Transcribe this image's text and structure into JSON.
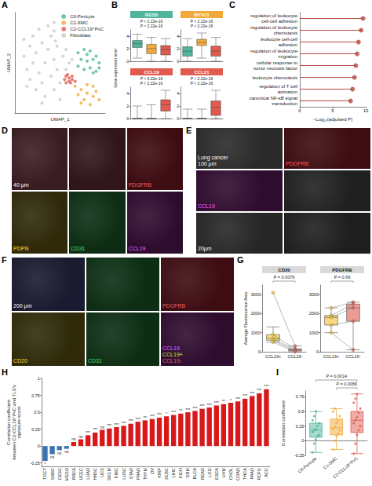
{
  "chart_data": [
    {
      "panel": "A",
      "type": "scatter",
      "xlabel": "UMAP_1",
      "ylabel": "UMAP_2",
      "xlim": [
        -15,
        15
      ],
      "ylim": [
        -15,
        15
      ],
      "tick_labels": false,
      "legend": "top-right",
      "series": [
        {
          "name": "C0-Pericyte",
          "color": "#4fb59b",
          "x": [
            6,
            8,
            10,
            12,
            13,
            11,
            9,
            7,
            8,
            10,
            12,
            6,
            9,
            11,
            13
          ],
          "y": [
            3,
            4,
            3.5,
            2,
            0,
            1,
            0.5,
            1,
            -2,
            -1.5,
            -2.5,
            -1,
            2.5,
            -3,
            -1.5
          ]
        },
        {
          "name": "C1-SMC",
          "color": "#f2a93b",
          "x": [
            5,
            7,
            9,
            11,
            13,
            8,
            10,
            6,
            12,
            9,
            11,
            7
          ],
          "y": [
            -7,
            -8,
            -9,
            -10,
            -11,
            -11,
            -12.5,
            -9.5,
            -8.5,
            -6.5,
            -7,
            -12
          ]
        },
        {
          "name": "C2-CCL19⁺PvC",
          "color": "#e05a4f",
          "x": [
            2,
            3,
            4,
            3,
            2.5,
            4,
            1.5,
            3.5,
            5,
            2
          ],
          "y": [
            -4,
            -4.5,
            -5,
            -5.5,
            -3.5,
            -4,
            -5,
            -6,
            -5.5,
            -6
          ]
        },
        {
          "name": "Fibroblast",
          "color": "#c9c9c9",
          "x": [
            -12,
            -11,
            -10,
            -10,
            -9,
            -9,
            -8,
            -8,
            -7,
            -7,
            -6,
            -6,
            -5,
            -5,
            -4,
            -4,
            -3,
            -3,
            -2,
            -2,
            -1,
            -1,
            -2,
            0,
            1,
            -1.5,
            2,
            2,
            3,
            -11,
            -12,
            -6,
            0,
            -2,
            4
          ],
          "y": [
            2,
            -2,
            5,
            -5,
            0,
            8,
            -8,
            3,
            -3,
            10,
            6,
            -6,
            0,
            -10,
            4,
            11,
            -4,
            8,
            1,
            -8,
            5,
            -2,
            9.5,
            -6,
            2,
            6.5,
            -2,
            4,
            0,
            -7,
            7,
            -12,
            -11,
            12,
            1
          ]
        }
      ]
    },
    {
      "panel": "B",
      "type": "boxplot",
      "ylabel": "Gene expression level",
      "ylim": [
        0,
        5
      ],
      "yticks": [
        0,
        2,
        4
      ],
      "colors": [
        "#4fb59b",
        "#f2a93b",
        "#e05a4f"
      ],
      "facets": [
        {
          "title": "RGS5",
          "color": "#4fb59b",
          "boxes": [
            [
              0.5,
              2.2,
              2.8,
              3.3,
              4.3
            ],
            [
              0,
              1.2,
              2.0,
              2.7,
              3.8
            ],
            [
              0,
              1.0,
              1.8,
              2.5,
              3.6
            ]
          ],
          "annotations": [
            "P < 2.22e-16",
            "P < 2.22e-16"
          ]
        },
        {
          "title": "MYH11",
          "color": "#f2a93b",
          "boxes": [
            [
              0,
              0.8,
              1.6,
              2.3,
              3.6
            ],
            [
              0.5,
              2.5,
              3.0,
              3.5,
              4.5
            ],
            [
              0,
              0.8,
              1.6,
              2.4,
              3.8
            ]
          ],
          "annotations": [
            "P < 2.22e-16",
            "P < 2.22e-16"
          ]
        },
        {
          "title": "CCL19",
          "color": "#e05a4f",
          "boxes": [
            [
              0,
              0,
              0,
              0,
              2.0
            ],
            [
              0,
              0,
              0,
              0,
              2.2
            ],
            [
              0,
              1.2,
              2.2,
              3.0,
              4.5
            ]
          ],
          "annotations": [
            "P < 2.22e-16",
            "P < 2.22e-16"
          ]
        },
        {
          "title": "CCL21",
          "color": "#e05a4f",
          "boxes": [
            [
              0,
              0,
              0,
              0,
              1.5
            ],
            [
              0,
              0,
              0,
              0,
              1.5
            ],
            [
              0,
              0.5,
              1.8,
              2.8,
              4.5
            ]
          ],
          "annotations": [
            "P < 2.22e-16",
            "P < 2.22e-16"
          ]
        }
      ]
    },
    {
      "panel": "C",
      "type": "lollipop",
      "orientation": "horizontal",
      "color": "#b5473f",
      "xlabel": "−Log₁₀(adjusted P)",
      "xlim": [
        0,
        10
      ],
      "xticks": [
        0,
        5,
        10
      ],
      "categories": [
        "regulation of leukocyte cell-cell adhesion",
        "regulation of leukocyte chemotaxis",
        "leukocyte cell-cell adhesion",
        "regulation of leukocyte migration",
        "cellular response to tumor necrosis factor",
        "leukocyte chemotaxis",
        "regulation of T cell activation",
        "canonical NF-κB signal transduction"
      ],
      "values": [
        9.6,
        9.3,
        8.9,
        8.7,
        8.5,
        8.3,
        8.0,
        7.7
      ]
    },
    {
      "panel": "G",
      "type": "boxplot",
      "ylabel": "Average Fluorescence Area",
      "categories": [
        "CCL19+",
        "CCL19-"
      ],
      "colors": [
        "#f2c12e",
        "#e05a4f"
      ],
      "ylim": [
        0,
        3500
      ],
      "yticks": [
        0,
        1000,
        2000,
        3000
      ],
      "facets": [
        {
          "title": "CD20",
          "annotation": "P = 0.0079",
          "values": [
            [
              3100,
              900,
              700,
              600,
              500
            ],
            [
              300,
              150,
              100,
              50,
              0
            ]
          ],
          "boxes": [
            [
              500,
              600,
              700,
              900,
              1300
            ],
            [
              0,
              50,
              100,
              150,
              300
            ]
          ]
        },
        {
          "title": "PDGFRB",
          "annotation": "P = 0.69",
          "values": [
            [
              2300,
              1900,
              1800,
              1400,
              1000
            ],
            [
              2600,
              2500,
              2300,
              1600,
              100
            ]
          ],
          "boxes": [
            [
              1000,
              1400,
              1800,
              1900,
              2300
            ],
            [
              100,
              1600,
              2300,
              2500,
              2600
            ]
          ]
        }
      ]
    },
    {
      "panel": "H",
      "type": "bar",
      "ylabel": "Correlation coefficient between C2-CCL19⁺PvC and TLS's signature score",
      "ylim": [
        -0.3,
        1
      ],
      "yticks": [
        -0.25,
        0,
        0.25,
        0.5,
        0.75,
        1
      ],
      "categories": [
        "TGCT",
        "SARC",
        "CESC",
        "MESO",
        "BRCA",
        "UCEC",
        "LUAD",
        "HNSC",
        "UCS",
        "SKCM",
        "KIRC",
        "LUSC",
        "STAD",
        "PRAD",
        "THYM",
        "OV",
        "KIRP",
        "DLBC",
        "LIHC",
        "KICH",
        "GBM",
        "BLCA",
        "READ",
        "LGG",
        "ESCA",
        "UVM",
        "CHOL",
        "COAD",
        "THCA",
        "PAAD",
        "PCPG",
        "ACC"
      ],
      "values": [
        -0.22,
        -0.12,
        -0.06,
        -0.04,
        0.06,
        0.1,
        0.16,
        0.2,
        0.24,
        0.26,
        0.28,
        0.3,
        0.33,
        0.36,
        0.38,
        0.4,
        0.42,
        0.44,
        0.46,
        0.48,
        0.5,
        0.52,
        0.55,
        0.57,
        0.6,
        0.62,
        0.64,
        0.66,
        0.7,
        0.74,
        0.78,
        0.84
      ],
      "colors": [
        "#3b75af",
        "#3b75af",
        "#3b75af",
        "#3b75af",
        "#d7191c",
        "#d7191c",
        "#d7191c",
        "#d7191c",
        "#d7191c",
        "#d7191c",
        "#d7191c",
        "#d7191c",
        "#d7191c",
        "#d7191c",
        "#d7191c",
        "#d7191c",
        "#d7191c",
        "#d7191c",
        "#d7191c",
        "#d7191c",
        "#d7191c",
        "#d7191c",
        "#d7191c",
        "#d7191c",
        "#d7191c",
        "#d7191c",
        "#d7191c",
        "#d7191c",
        "#d7191c",
        "#d7191c",
        "#d7191c",
        "#d7191c"
      ],
      "annotations": [
        "*",
        "ns",
        "ns",
        "ns",
        "ns",
        "ns",
        "***",
        "***",
        "ns",
        "***",
        "***",
        "***",
        "***",
        "***",
        "**",
        "***",
        "***",
        "*",
        "***",
        "**",
        "***",
        "***",
        "***",
        "***",
        "***",
        "**",
        "*",
        "***",
        "***",
        "***",
        "***",
        "***"
      ]
    },
    {
      "panel": "I",
      "type": "boxplot",
      "ylabel": "Correlation coefficient",
      "categories": [
        "C0-Pericyte",
        "C1-SMC",
        "C2-CCL19⁺PvC"
      ],
      "colors": [
        "#4fb59b",
        "#f2a93b",
        "#e05a4f"
      ],
      "ylim": [
        -0.25,
        0.85
      ],
      "yticks": [
        -0.25,
        0,
        0.25,
        0.5,
        0.75
      ],
      "boxes": [
        [
          -0.2,
          0.06,
          0.18,
          0.3,
          0.5
        ],
        [
          -0.15,
          0.1,
          0.22,
          0.37,
          0.55
        ],
        [
          -0.22,
          0.14,
          0.35,
          0.5,
          0.8
        ]
      ],
      "points": [
        [
          -0.2,
          -0.05,
          0.02,
          0.08,
          0.1,
          0.15,
          0.18,
          0.2,
          0.25,
          0.3,
          0.35,
          0.42,
          0.5
        ],
        [
          -0.15,
          0.0,
          0.08,
          0.12,
          0.18,
          0.2,
          0.24,
          0.3,
          0.35,
          0.42,
          0.5,
          0.55
        ],
        [
          -0.22,
          -0.05,
          0.1,
          0.18,
          0.25,
          0.3,
          0.35,
          0.4,
          0.48,
          0.55,
          0.65,
          0.72,
          0.8
        ]
      ],
      "annotations": [
        "P = 0.0014",
        "P = 0.0066"
      ]
    }
  ],
  "images": [
    {
      "panel": "D",
      "tiles": [
        {
          "color": "#3a1d24",
          "labels": [
            {
              "text": "40 μm",
              "color": "#ffffff"
            }
          ]
        },
        {
          "color": "#30161a",
          "labels": []
        },
        {
          "color": "#3d0d12",
          "labels": [
            {
              "text": "PDGFRB",
              "color": "#ff5a5a"
            }
          ]
        },
        {
          "color": "#2f2b0a",
          "labels": [
            {
              "text": "PDPN",
              "color": "#f2e030"
            }
          ]
        },
        {
          "color": "#0d2e14",
          "labels": [
            {
              "text": "CD31",
              "color": "#4fe070"
            }
          ]
        },
        {
          "color": "#2e0c2e",
          "labels": [
            {
              "text": "CCL19",
              "color": "#ff5aff"
            }
          ]
        }
      ]
    },
    {
      "panel": "E",
      "tiles": [
        {
          "color": "#2a2a2a",
          "labels": [
            {
              "text": "Lung cancer",
              "color": "#ffffff"
            },
            {
              "text": "100 μm",
              "color": "#ffffff"
            }
          ]
        },
        {
          "color": "#3d0d12",
          "labels": [
            {
              "text": "PDGFRB",
              "color": "#ff5a5a"
            }
          ]
        },
        {
          "color": "#2e0c2e",
          "labels": [
            {
              "text": "CCL19",
              "color": "#ff5aff"
            }
          ]
        },
        {
          "color": "#202020",
          "labels": []
        },
        {
          "color": "#262626",
          "labels": [
            {
              "text": "20μm",
              "color": "#ffffff"
            }
          ]
        },
        {
          "color": "#1e1e1e",
          "labels": []
        }
      ]
    },
    {
      "panel": "F",
      "tiles": [
        {
          "color": "#1a1a30",
          "labels": [
            {
              "text": "200 μm",
              "color": "#ffffff"
            }
          ]
        },
        {
          "color": "#0d2e14",
          "labels": []
        },
        {
          "color": "#3d0d12",
          "labels": [
            {
              "text": "PDGFRB",
              "color": "#ff5a5a"
            }
          ]
        },
        {
          "color": "#2f2b0a",
          "labels": [
            {
              "text": "CD20",
              "color": "#f2e030"
            }
          ]
        },
        {
          "color": "#0d2e14",
          "labels": [
            {
              "text": "CD31",
              "color": "#4fe070"
            }
          ]
        },
        {
          "color": "#2e0c2e",
          "labels": [
            {
              "text": "CCL19",
              "color": "#ff5aff"
            },
            {
              "text": "CCL19+",
              "color": "#f2e030"
            },
            {
              "text": "CCL19-",
              "color": "#ff5a5a"
            }
          ]
        }
      ]
    }
  ]
}
